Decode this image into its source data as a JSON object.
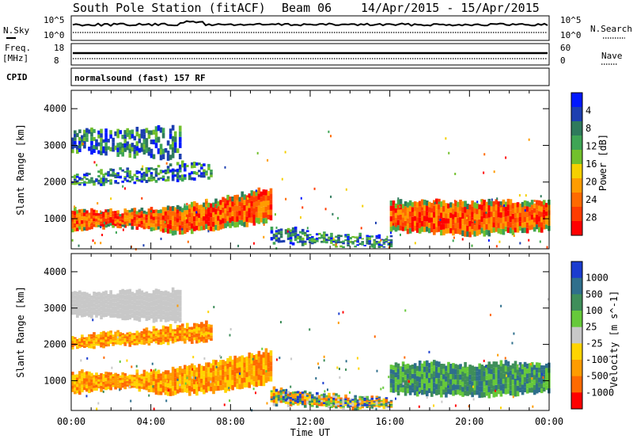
{
  "header": {
    "station": "South Pole Station (fitACF)",
    "beam": "Beam 06",
    "dates": "14/Apr/2015 - 15/Apr/2015"
  },
  "top_panels": {
    "nsky_label": "N.Sky",
    "nsky_ticks": [
      "10^5",
      "10^0"
    ],
    "nsearch_label": "N.Search",
    "nsearch_ticks": [
      "10^5",
      "10^0"
    ],
    "freq_label": "Freq.",
    "freq_unit": "[MHz]",
    "freq_ticks": [
      "18",
      "8"
    ],
    "nave_label": "Nave",
    "nave_ticks": [
      "60",
      "0"
    ],
    "cpid_label": "CPID",
    "cpid_text": "normalsound (fast) 157 RF"
  },
  "chart_data": [
    {
      "type": "heatmap",
      "name": "power-panel",
      "xlabel": "",
      "ylabel": "Slant Range [km]",
      "yticks": [
        "1000",
        "2000",
        "3000",
        "4000"
      ],
      "ylim": [
        180,
        4500
      ],
      "xlim_hours": [
        0,
        24
      ],
      "colorbar": {
        "label": "Power [dB]",
        "ticks": [
          "4",
          "8",
          "12",
          "16",
          "20",
          "24",
          "28"
        ],
        "colors": [
          "#0018ff",
          "#1d3fb0",
          "#2f7a5c",
          "#3fa555",
          "#72c02c",
          "#f5d000",
          "#ff9c00",
          "#ff6a00",
          "#ff3c00",
          "#ff0000"
        ]
      },
      "bands": [
        {
          "from_h": 0.0,
          "to_h": 10.0,
          "low_km": [
            650,
            800,
            600,
            700,
            950
          ],
          "high_km": [
            1250,
            1200,
            1300,
            1550,
            1850
          ],
          "level": "strong"
        },
        {
          "from_h": 10.0,
          "to_h": 16.0,
          "low_km": [
            350,
            300,
            250,
            250
          ],
          "high_km": [
            800,
            650,
            550,
            500
          ],
          "level": "weak"
        },
        {
          "from_h": 16.0,
          "to_h": 24.0,
          "low_km": [
            650,
            600,
            550,
            600,
            700
          ],
          "high_km": [
            1450,
            1500,
            1450,
            1500,
            1450
          ],
          "level": "strong"
        },
        {
          "from_h": 0.0,
          "to_h": 5.5,
          "low_km": [
            2800,
            2600
          ],
          "high_km": [
            3400,
            3500
          ],
          "level": "weak"
        },
        {
          "from_h": 0.0,
          "to_h": 7.0,
          "low_km": [
            1900,
            2100
          ],
          "high_km": [
            2200,
            2600
          ],
          "level": "weak"
        }
      ]
    },
    {
      "type": "heatmap",
      "name": "velocity-panel",
      "xlabel": "Time UT",
      "ylabel": "Slant Range [km]",
      "yticks": [
        "1000",
        "2000",
        "3000",
        "4000"
      ],
      "ylim": [
        180,
        4500
      ],
      "xlim_hours": [
        0,
        24
      ],
      "xticks": [
        "00:00",
        "04:00",
        "08:00",
        "12:00",
        "16:00",
        "20:00",
        "00:00"
      ],
      "colorbar": {
        "label": "Velocity [m s^-1]",
        "ticks": [
          "1000",
          "500",
          "100",
          "25",
          "-25",
          "-100",
          "-500",
          "-1000"
        ],
        "colors": [
          "#1a3ccf",
          "#2f6f8c",
          "#3f8e5a",
          "#66c93a",
          "#c8c8c8",
          "#ffd400",
          "#ff9c00",
          "#ff6a00",
          "#ff0000"
        ]
      },
      "bands": [
        {
          "from_h": 0.0,
          "to_h": 10.0,
          "low_km": [
            650,
            800,
            600,
            700,
            950
          ],
          "high_km": [
            1250,
            1200,
            1300,
            1550,
            1850
          ],
          "level": "negative"
        },
        {
          "from_h": 10.0,
          "to_h": 16.0,
          "low_km": [
            350,
            300,
            250,
            250
          ],
          "high_km": [
            800,
            650,
            550,
            500
          ],
          "level": "mixed"
        },
        {
          "from_h": 16.0,
          "to_h": 24.0,
          "low_km": [
            650,
            600,
            550,
            600,
            700
          ],
          "high_km": [
            1450,
            1500,
            1450,
            1500,
            1450
          ],
          "level": "positive"
        },
        {
          "from_h": 0.0,
          "to_h": 5.5,
          "low_km": [
            2800,
            2600
          ],
          "high_km": [
            3400,
            3500
          ],
          "level": "neutral"
        },
        {
          "from_h": 0.0,
          "to_h": 7.0,
          "low_km": [
            1900,
            2100
          ],
          "high_km": [
            2200,
            2600
          ],
          "level": "negative"
        }
      ]
    }
  ]
}
